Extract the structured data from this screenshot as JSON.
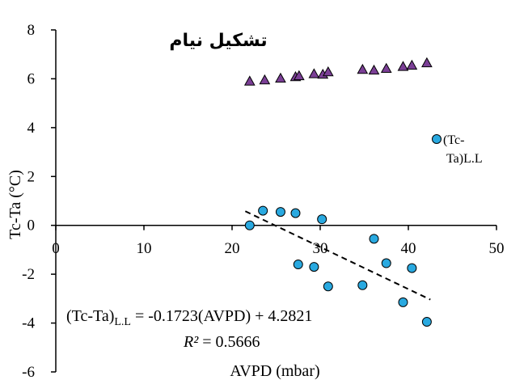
{
  "chart_data": {
    "type": "scatter",
    "title": "تشکیل نیام",
    "xlabel": "AVPD (mbar)",
    "ylabel": "Tc-Ta (°C)",
    "xlim": [
      0,
      50
    ],
    "ylim": [
      -6,
      8
    ],
    "x_ticks": [
      "0",
      "10",
      "20",
      "30",
      "40",
      "50"
    ],
    "y_ticks": [
      "8",
      "6",
      "4",
      "2",
      "0",
      "-2",
      "-4",
      "-6"
    ],
    "grid": false,
    "legend_position": "right",
    "series": [
      {
        "name": "(Tc-Ta)L.L",
        "marker": "circle",
        "color": "#29a9e0",
        "points": [
          {
            "x": 22.0,
            "y": 0.0
          },
          {
            "x": 23.5,
            "y": 0.6
          },
          {
            "x": 25.5,
            "y": 0.55
          },
          {
            "x": 27.2,
            "y": 0.5
          },
          {
            "x": 30.2,
            "y": 0.25
          },
          {
            "x": 27.5,
            "y": -1.6
          },
          {
            "x": 29.3,
            "y": -1.7
          },
          {
            "x": 30.9,
            "y": -2.5
          },
          {
            "x": 34.8,
            "y": -2.45
          },
          {
            "x": 36.1,
            "y": -0.55
          },
          {
            "x": 37.5,
            "y": -1.55
          },
          {
            "x": 39.4,
            "y": -3.15
          },
          {
            "x": 40.4,
            "y": -1.75
          },
          {
            "x": 42.1,
            "y": -3.95
          }
        ]
      },
      {
        "name": "",
        "marker": "triangle",
        "color": "#7b3f96",
        "points": [
          {
            "x": 22.0,
            "y": 5.9
          },
          {
            "x": 23.7,
            "y": 5.95
          },
          {
            "x": 25.5,
            "y": 6.02
          },
          {
            "x": 27.2,
            "y": 6.08
          },
          {
            "x": 27.6,
            "y": 6.12
          },
          {
            "x": 29.3,
            "y": 6.2
          },
          {
            "x": 30.3,
            "y": 6.18
          },
          {
            "x": 30.9,
            "y": 6.28
          },
          {
            "x": 34.8,
            "y": 6.38
          },
          {
            "x": 36.1,
            "y": 6.35
          },
          {
            "x": 37.5,
            "y": 6.42
          },
          {
            "x": 39.4,
            "y": 6.5
          },
          {
            "x": 40.4,
            "y": 6.55
          },
          {
            "x": 42.1,
            "y": 6.65
          }
        ]
      }
    ],
    "trendline": {
      "slope": -0.1723,
      "intercept": 4.2821,
      "x_range": [
        21.5,
        42.5
      ],
      "style": "dashed"
    },
    "equation": {
      "lhs": "(Tc-Ta)",
      "subscript": "L.L",
      "rhs": " = -0.1723(AVPD) + 4.2821",
      "r2_label": "R²",
      "r2_value": " = 0.5666"
    },
    "legend": {
      "line1": "(Tc-",
      "line2": "Ta)L.L"
    }
  }
}
